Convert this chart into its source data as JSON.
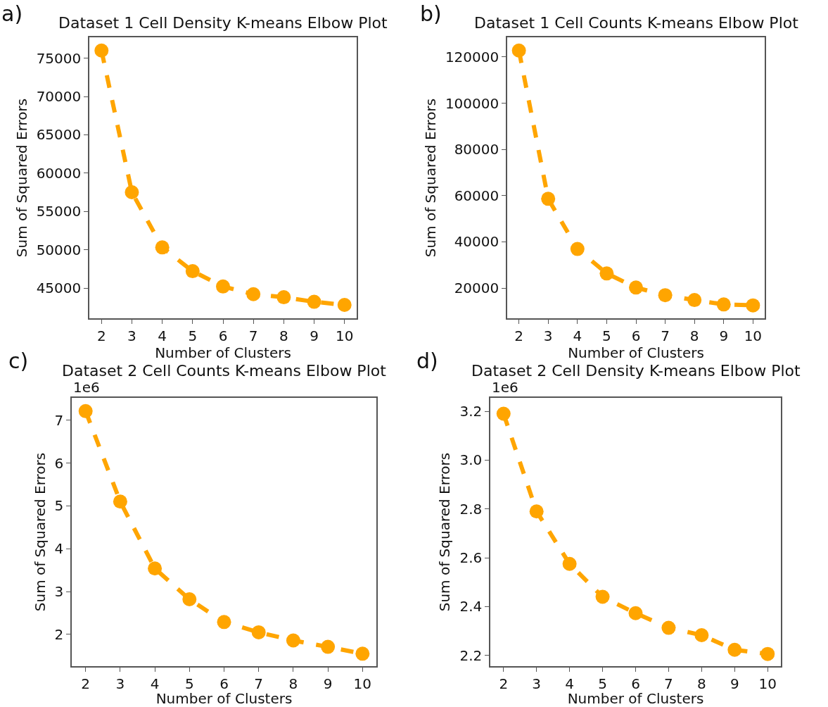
{
  "chart_data": [
    {
      "type": "line",
      "title": "Dataset 1 Cell Density K-means Elbow Plot",
      "xlabel": "Number of Clusters",
      "ylabel": "Sum of Squared Errors",
      "annotations": [
        "a)"
      ],
      "x": [
        2,
        3,
        4,
        5,
        6,
        7,
        8,
        9,
        10
      ],
      "series": [
        {
          "color": "#ffa500",
          "values": [
            76000,
            57500,
            50300,
            47200,
            45200,
            44200,
            43800,
            43200,
            42800
          ]
        }
      ],
      "xlim": [
        1.6,
        10.4
      ],
      "xticks": [
        2,
        3,
        4,
        5,
        6,
        7,
        8,
        9,
        10
      ],
      "ylim": [
        41050,
        77720
      ],
      "yticks": [
        45000,
        50000,
        55000,
        60000,
        65000,
        70000,
        75000
      ],
      "grid": false,
      "marker": "circle",
      "line_style": "dashed"
    },
    {
      "type": "line",
      "title": "Dataset 1 Cell Counts K-means Elbow Plot",
      "xlabel": "Number of Clusters",
      "ylabel": "Sum of Squared Errors",
      "annotations": [
        "b)"
      ],
      "x": [
        2,
        3,
        4,
        5,
        6,
        7,
        8,
        9,
        10
      ],
      "series": [
        {
          "color": "#ffa500",
          "values": [
            122800,
            58600,
            36900,
            26300,
            20200,
            16900,
            14800,
            12900,
            12500
          ]
        }
      ],
      "xlim": [
        1.6,
        10.4
      ],
      "xticks": [
        2,
        3,
        4,
        5,
        6,
        7,
        8,
        9,
        10
      ],
      "ylim": [
        6900,
        128500
      ],
      "yticks": [
        20000,
        40000,
        60000,
        80000,
        100000,
        120000
      ],
      "grid": false,
      "marker": "circle",
      "line_style": "dashed"
    },
    {
      "type": "line",
      "title": "Dataset 2 Cell Counts K-means Elbow Plot",
      "xlabel": "Number of Clusters",
      "ylabel": "Sum of Squared Errors",
      "annotations": [
        "c)",
        "1e6"
      ],
      "x": [
        2,
        3,
        4,
        5,
        6,
        7,
        8,
        9,
        10
      ],
      "series": [
        {
          "color": "#ffa500",
          "values": [
            7.21,
            5.1,
            3.54,
            2.82,
            2.29,
            2.05,
            1.86,
            1.71,
            1.55
          ]
        }
      ],
      "xlim": [
        1.6,
        10.4
      ],
      "xticks": [
        2,
        3,
        4,
        5,
        6,
        7,
        8,
        9,
        10
      ],
      "ylim": [
        1.26,
        7.52
      ],
      "yticks": [
        2,
        3,
        4,
        5,
        6,
        7
      ],
      "grid": false,
      "marker": "circle",
      "line_style": "dashed"
    },
    {
      "type": "line",
      "title": "Dataset 2 Cell Density K-means Elbow Plot",
      "xlabel": "Number of Clusters",
      "ylabel": "Sum of Squared Errors",
      "annotations": [
        "d)",
        "1e6"
      ],
      "x": [
        2,
        3,
        4,
        5,
        6,
        7,
        8,
        9,
        10
      ],
      "series": [
        {
          "color": "#ffa500",
          "values": [
            3.19,
            2.79,
            2.575,
            2.44,
            2.373,
            2.313,
            2.283,
            2.223,
            2.206
          ]
        }
      ],
      "xlim": [
        1.6,
        10.4
      ],
      "xticks": [
        2,
        3,
        4,
        5,
        6,
        7,
        8,
        9,
        10
      ],
      "ylim": [
        2.156,
        3.255
      ],
      "yticks": [
        2.2,
        2.4,
        2.6,
        2.8,
        {
          "value": 3.0,
          "label": "3.0"
        },
        3.2
      ],
      "grid": false,
      "marker": "circle",
      "line_style": "dashed"
    }
  ]
}
